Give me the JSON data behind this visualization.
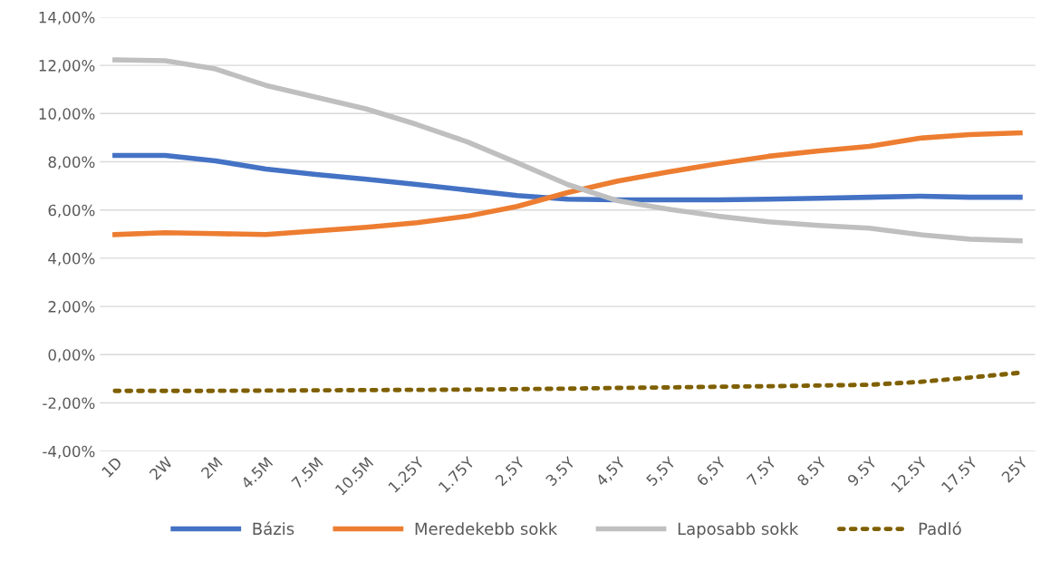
{
  "chart_data": {
    "type": "line",
    "categories": [
      "1D",
      "2W",
      "2M",
      "4.5M",
      "7.5M",
      "10.5M",
      "1.25Y",
      "1.75Y",
      "2,5Y",
      "3.5Y",
      "4,5Y",
      "5,5Y",
      "6,5Y",
      "7.5Y",
      "8.5Y",
      "9.5Y",
      "12.5Y",
      "17.5Y",
      "25Y"
    ],
    "series": [
      {
        "name": "Bázis",
        "color": "#4472c4",
        "line_style": "solid",
        "values": [
          8.26,
          8.26,
          8.04,
          7.7,
          7.47,
          7.28,
          7.06,
          6.83,
          6.6,
          6.45,
          6.42,
          6.42,
          6.42,
          6.45,
          6.49,
          6.53,
          6.57,
          6.53,
          6.53
        ]
      },
      {
        "name": "Meredekebb sokk",
        "color": "#ed7d31",
        "line_style": "solid",
        "values": [
          4.98,
          5.06,
          5.02,
          4.98,
          5.13,
          5.28,
          5.47,
          5.74,
          6.15,
          6.72,
          7.2,
          7.58,
          7.92,
          8.23,
          8.45,
          8.64,
          8.98,
          9.13,
          9.2
        ]
      },
      {
        "name": "Laposabb sokk",
        "color": "#bfbfbf",
        "line_style": "solid",
        "values": [
          12.23,
          12.19,
          11.85,
          11.17,
          10.68,
          10.19,
          9.55,
          8.83,
          7.96,
          7.06,
          6.38,
          6.04,
          5.74,
          5.51,
          5.36,
          5.25,
          4.98,
          4.79,
          4.72
        ]
      },
      {
        "name": "Padló",
        "color": "#7f6000",
        "line_style": "dotted",
        "values": [
          -1.5,
          -1.5,
          -1.5,
          -1.49,
          -1.48,
          -1.47,
          -1.46,
          -1.45,
          -1.43,
          -1.41,
          -1.38,
          -1.36,
          -1.33,
          -1.31,
          -1.28,
          -1.25,
          -1.13,
          -0.95,
          -0.75
        ]
      }
    ],
    "ylim": [
      -4,
      14
    ],
    "yticks": [
      {
        "value": -4,
        "label": "-4,00%"
      },
      {
        "value": -2,
        "label": "-2,00%"
      },
      {
        "value": 0,
        "label": "0,00%"
      },
      {
        "value": 2,
        "label": "2,00%"
      },
      {
        "value": 4,
        "label": "4,00%"
      },
      {
        "value": 6,
        "label": "6,00%"
      },
      {
        "value": 8,
        "label": "8,00%"
      },
      {
        "value": 10,
        "label": "10,00%"
      },
      {
        "value": 12,
        "label": "12,00%"
      },
      {
        "value": 14,
        "label": "14,00%"
      }
    ],
    "grid": "y",
    "legend": "bottom"
  }
}
